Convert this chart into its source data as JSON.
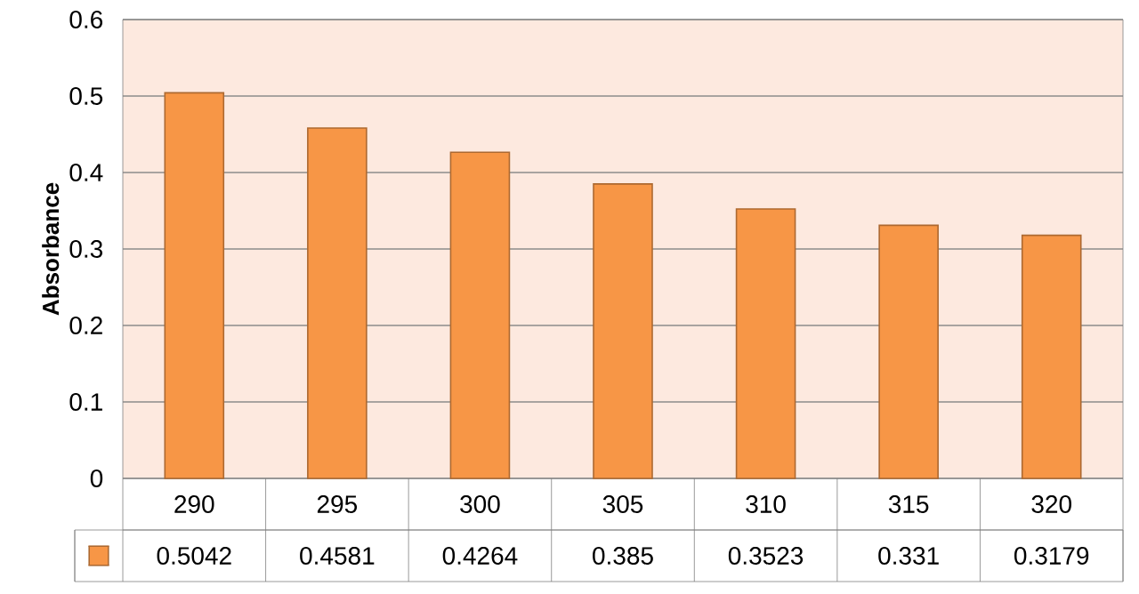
{
  "chart_data": {
    "type": "bar",
    "ylabel": "Absorbance",
    "categories": [
      "290",
      "295",
      "300",
      "305",
      "310",
      "315",
      "320"
    ],
    "values": [
      0.5042,
      0.4581,
      0.4264,
      0.385,
      0.3523,
      0.331,
      0.3179
    ],
    "color": "#f79646",
    "ylim": [
      0,
      0.6
    ],
    "yticks": [
      0,
      0.1,
      0.2,
      0.3,
      0.4,
      0.5,
      0.6
    ],
    "grid": "y",
    "data_labels": true
  }
}
